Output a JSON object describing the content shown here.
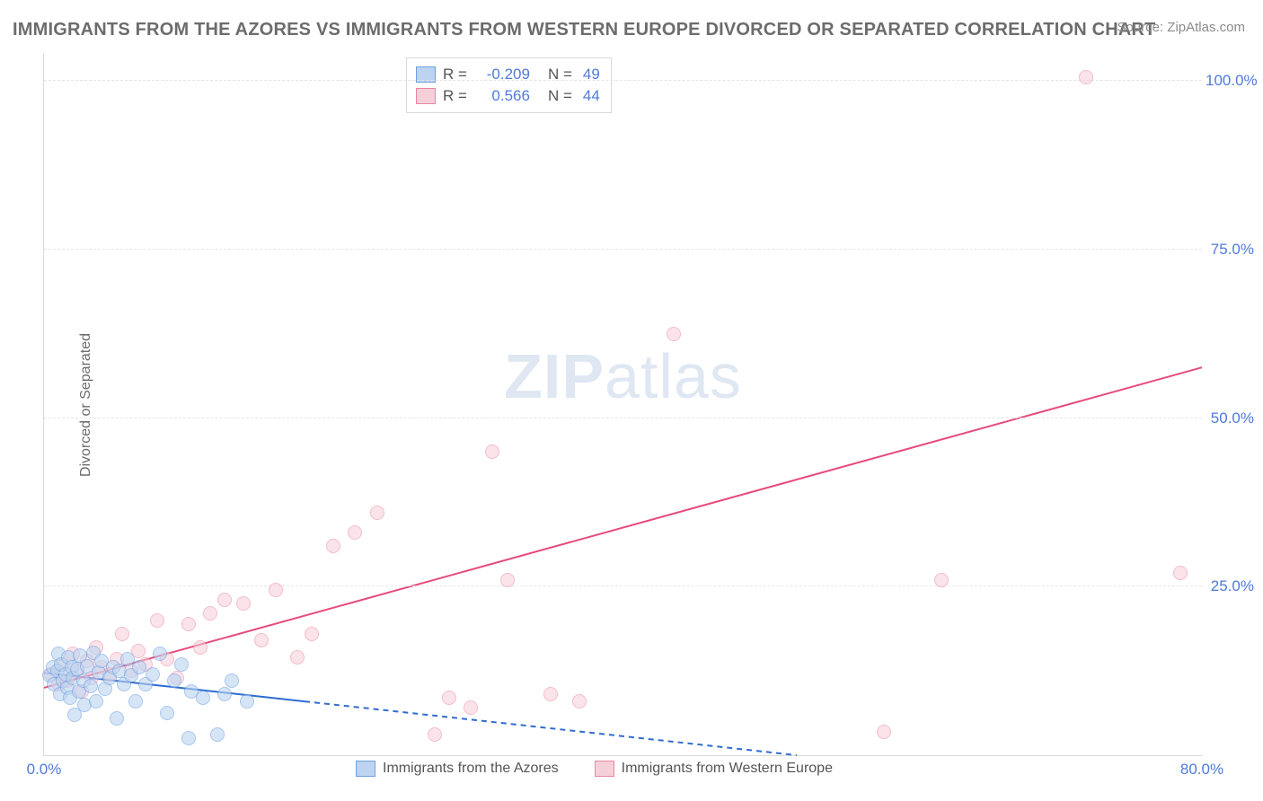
{
  "title": "IMMIGRANTS FROM THE AZORES VS IMMIGRANTS FROM WESTERN EUROPE DIVORCED OR SEPARATED CORRELATION CHART",
  "source": "Source: ZipAtlas.com",
  "watermark_a": "ZIP",
  "watermark_b": "atlas",
  "ylabel": "Divorced or Separated",
  "chart": {
    "type": "scatter",
    "xlim": [
      0,
      80
    ],
    "ylim": [
      0,
      104
    ],
    "xticks": [
      {
        "v": 0,
        "label": "0.0%"
      },
      {
        "v": 80,
        "label": "80.0%"
      }
    ],
    "yticks": [
      {
        "v": 25,
        "label": "25.0%"
      },
      {
        "v": 50,
        "label": "50.0%"
      },
      {
        "v": 75,
        "label": "75.0%"
      },
      {
        "v": 100,
        "label": "100.0%"
      }
    ],
    "background_color": "#ffffff",
    "grid_color": "#e5e5e5",
    "series": [
      {
        "name": "Immigrants from the Azores",
        "fill": "#bcd4f0",
        "stroke": "#6fa1e2",
        "fill_opacity": 0.6,
        "marker_r": 8,
        "R": "-0.209",
        "N": "49",
        "trend": {
          "x1": 0,
          "y1": 12.2,
          "x2": 52,
          "y2": 0,
          "color": "#2f6cd1",
          "width": 2,
          "dash": "6 5",
          "solid_until_x": 18
        },
        "points": [
          [
            0.4,
            11.8
          ],
          [
            0.6,
            13.0
          ],
          [
            0.7,
            10.5
          ],
          [
            0.9,
            12.5
          ],
          [
            1.0,
            15.0
          ],
          [
            1.1,
            9.0
          ],
          [
            1.2,
            13.5
          ],
          [
            1.3,
            11.0
          ],
          [
            1.5,
            12.0
          ],
          [
            1.6,
            10.0
          ],
          [
            1.7,
            14.5
          ],
          [
            1.8,
            8.5
          ],
          [
            1.9,
            13.0
          ],
          [
            2.0,
            11.5
          ],
          [
            2.1,
            6.0
          ],
          [
            2.3,
            12.8
          ],
          [
            2.4,
            9.5
          ],
          [
            2.5,
            14.8
          ],
          [
            2.7,
            11.0
          ],
          [
            2.8,
            7.5
          ],
          [
            3.0,
            13.2
          ],
          [
            3.2,
            10.2
          ],
          [
            3.4,
            15.2
          ],
          [
            3.6,
            8.0
          ],
          [
            3.8,
            12.2
          ],
          [
            4.0,
            14.0
          ],
          [
            4.2,
            9.8
          ],
          [
            4.5,
            11.5
          ],
          [
            4.8,
            13.0
          ],
          [
            5.0,
            5.5
          ],
          [
            5.2,
            12.5
          ],
          [
            5.5,
            10.5
          ],
          [
            5.8,
            14.2
          ],
          [
            6.0,
            11.8
          ],
          [
            6.3,
            8.0
          ],
          [
            6.6,
            13.0
          ],
          [
            7.0,
            10.5
          ],
          [
            7.5,
            12.0
          ],
          [
            8.0,
            15.0
          ],
          [
            8.5,
            6.2
          ],
          [
            9.0,
            11.0
          ],
          [
            9.5,
            13.5
          ],
          [
            10.0,
            2.5
          ],
          [
            10.2,
            9.5
          ],
          [
            11.0,
            8.5
          ],
          [
            12.0,
            3.0
          ],
          [
            12.5,
            9.0
          ],
          [
            13.0,
            11.0
          ],
          [
            14.0,
            8.0
          ]
        ]
      },
      {
        "name": "Immigrants from Western Europe",
        "fill": "#f7cfd9",
        "stroke": "#e986a3",
        "fill_opacity": 0.55,
        "marker_r": 8,
        "R": "0.566",
        "N": "44",
        "trend": {
          "x1": 0,
          "y1": 10.0,
          "x2": 80,
          "y2": 57.5,
          "color": "#e64b7a",
          "width": 2,
          "dash": "",
          "solid_until_x": 80
        },
        "points": [
          [
            0.5,
            12.0
          ],
          [
            1.0,
            10.5
          ],
          [
            1.3,
            13.5
          ],
          [
            1.6,
            11.0
          ],
          [
            2.0,
            15.0
          ],
          [
            2.3,
            12.5
          ],
          [
            2.6,
            9.5
          ],
          [
            3.0,
            14.0
          ],
          [
            3.3,
            11.5
          ],
          [
            3.6,
            16.0
          ],
          [
            4.0,
            13.0
          ],
          [
            4.5,
            12.0
          ],
          [
            5.0,
            14.2
          ],
          [
            5.4,
            18.0
          ],
          [
            6.0,
            12.5
          ],
          [
            6.5,
            15.5
          ],
          [
            7.0,
            13.5
          ],
          [
            7.8,
            20.0
          ],
          [
            8.5,
            14.2
          ],
          [
            9.2,
            11.5
          ],
          [
            10.0,
            19.5
          ],
          [
            10.8,
            16.0
          ],
          [
            11.5,
            21.0
          ],
          [
            12.5,
            23.0
          ],
          [
            13.8,
            22.5
          ],
          [
            15.0,
            17.0
          ],
          [
            16.0,
            24.5
          ],
          [
            17.5,
            14.5
          ],
          [
            18.5,
            18.0
          ],
          [
            20.0,
            31.0
          ],
          [
            21.5,
            33.0
          ],
          [
            23.0,
            36.0
          ],
          [
            27.0,
            3.0
          ],
          [
            28.0,
            8.5
          ],
          [
            29.5,
            7.0
          ],
          [
            31.0,
            45.0
          ],
          [
            32.0,
            26.0
          ],
          [
            35.0,
            9.0
          ],
          [
            37.0,
            8.0
          ],
          [
            43.5,
            62.5
          ],
          [
            58.0,
            3.5
          ],
          [
            62.0,
            26.0
          ],
          [
            72.0,
            100.5
          ],
          [
            78.5,
            27.0
          ]
        ]
      }
    ],
    "bottom_legend": [
      {
        "label": "Immigrants from the Azores",
        "fill": "#bcd4f0",
        "stroke": "#6fa1e2"
      },
      {
        "label": "Immigrants from Western Europe",
        "fill": "#f7cfd9",
        "stroke": "#e986a3"
      }
    ]
  }
}
